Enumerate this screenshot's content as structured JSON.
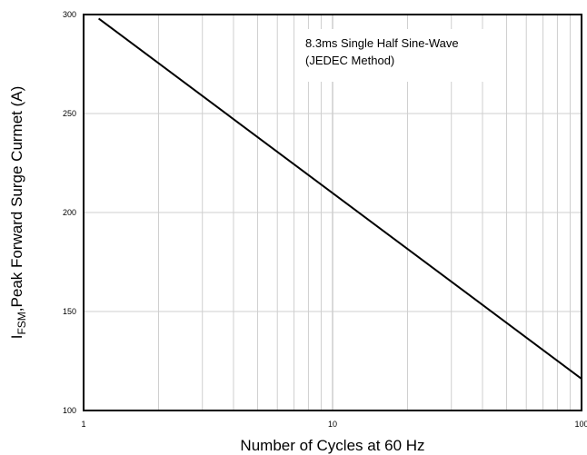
{
  "chart_data": {
    "type": "line",
    "xscale": "log",
    "xlim": [
      1,
      100
    ],
    "ylim": [
      100,
      300
    ],
    "grid": true,
    "xticks": [
      1,
      10,
      100
    ],
    "xtick_labels": [
      "1",
      "10",
      "100"
    ],
    "yticks": [
      100,
      150,
      200,
      250,
      300
    ],
    "ytick_labels": [
      "100",
      "150",
      "200",
      "250",
      "300"
    ],
    "xlabel": "Number of Cycles at 60 Hz",
    "ylabel_parts": {
      "main": "I",
      "sub": "FSM",
      "rest": ",Peak Forward Surge Curmet (A)"
    },
    "annotation": [
      "8.3ms Single Half Sine-Wave",
      "(JEDEC Method)"
    ],
    "series": [
      {
        "x": [
          1.15,
          100
        ],
        "y": [
          298,
          116
        ]
      }
    ]
  }
}
